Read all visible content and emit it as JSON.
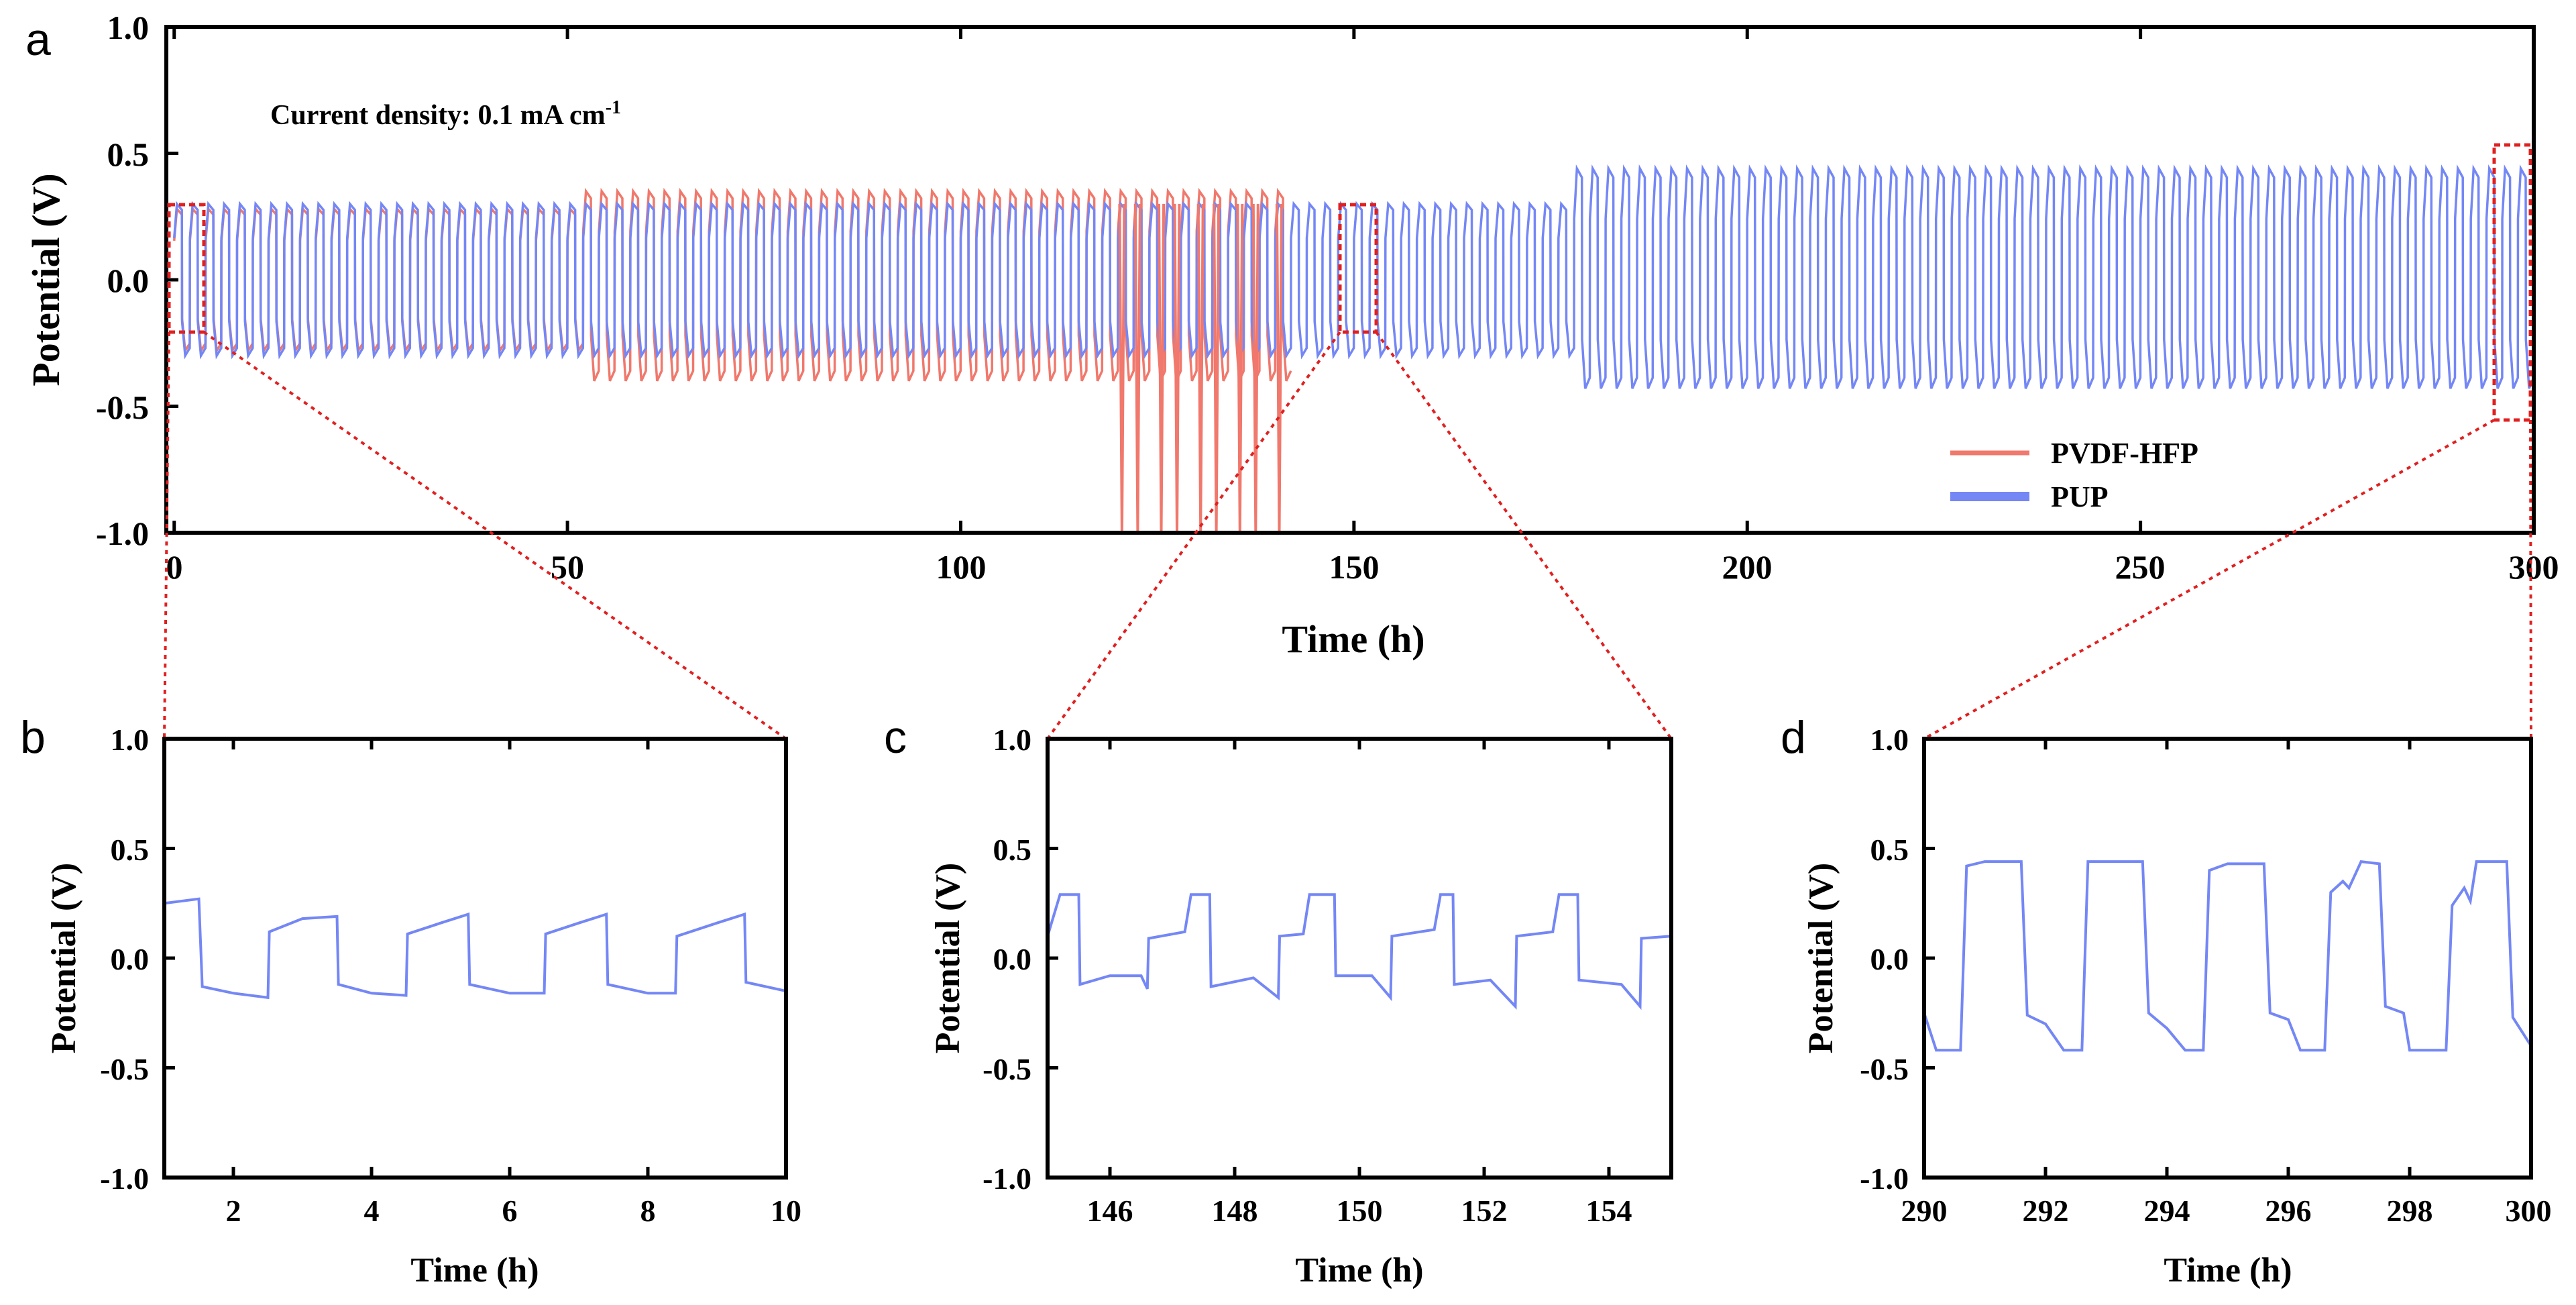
{
  "colors": {
    "pvdf": "#f0786c",
    "pup": "#7487f5",
    "zoom": "#e02020",
    "axis": "#000000"
  },
  "chart_data": [
    {
      "id": "a",
      "panel_label": "a",
      "type": "line",
      "annotation": "Current density: 0.1 mA cm",
      "annotation_sup": "-1",
      "xlabel": "Time (h)",
      "ylabel": "Potential (V)",
      "xlim": [
        -1,
        300
      ],
      "ylim": [
        -1.0,
        1.0
      ],
      "xticks": [
        "0",
        "50",
        "100",
        "150",
        "200",
        "250",
        "300"
      ],
      "yticks": [
        "1.0",
        "0.5",
        "0.0",
        "-0.5",
        "-1.0"
      ],
      "legend": [
        "PVDF-HFP",
        "PUP"
      ],
      "series": [
        {
          "name": "PVDF-HFP",
          "time_range": [
            0,
            141
          ],
          "cycle_period_h": 2.0,
          "segments": [
            {
              "from": 0,
              "to": 51,
              "upper": 0.28,
              "lower": -0.28
            },
            {
              "from": 51,
              "to": 141,
              "upper": 0.35,
              "lower": -0.4
            }
          ],
          "short_circuit_spikes_h": [
            120.5,
            122.5,
            125.5,
            127.5,
            130.5,
            132.5,
            135.5,
            137.5,
            140.5
          ]
        },
        {
          "name": "PUP",
          "time_range": [
            0,
            300
          ],
          "cycle_period_h": 2.0,
          "segments": [
            {
              "from": 0,
              "to": 177,
              "upper": 0.3,
              "lower": -0.3
            },
            {
              "from": 177,
              "to": 300,
              "upper": 0.44,
              "lower": -0.43
            }
          ]
        }
      ],
      "zoom_boxes": [
        {
          "x": [
            0,
            4
          ]
        },
        {
          "x": [
            148.5,
            153
          ]
        },
        {
          "x": [
            295.5,
            300
          ]
        }
      ]
    },
    {
      "id": "b",
      "panel_label": "b",
      "type": "line",
      "xlabel": "Time (h)",
      "ylabel": "Potential (V)",
      "xlim": [
        1,
        10
      ],
      "ylim": [
        -1.0,
        1.0
      ],
      "xticks": [
        "2",
        "4",
        "6",
        "8",
        "10"
      ],
      "yticks": [
        "1.0",
        "0.5",
        "0.0",
        "-0.5",
        "-1.0"
      ],
      "series": [
        {
          "name": "PUP",
          "points": [
            [
              1.0,
              0.25
            ],
            [
              1.5,
              0.27
            ],
            [
              1.55,
              -0.13
            ],
            [
              2.0,
              -0.16
            ],
            [
              2.5,
              -0.18
            ],
            [
              2.52,
              0.12
            ],
            [
              3.0,
              0.18
            ],
            [
              3.5,
              0.19
            ],
            [
              3.52,
              -0.12
            ],
            [
              4.0,
              -0.16
            ],
            [
              4.5,
              -0.17
            ],
            [
              4.52,
              0.11
            ],
            [
              5.0,
              0.16
            ],
            [
              5.4,
              0.2
            ],
            [
              5.42,
              -0.12
            ],
            [
              6.0,
              -0.16
            ],
            [
              6.5,
              -0.16
            ],
            [
              6.52,
              0.11
            ],
            [
              7.0,
              0.16
            ],
            [
              7.4,
              0.2
            ],
            [
              7.42,
              -0.12
            ],
            [
              8.0,
              -0.16
            ],
            [
              8.4,
              -0.16
            ],
            [
              8.42,
              0.1
            ],
            [
              9.0,
              0.16
            ],
            [
              9.4,
              0.2
            ],
            [
              9.42,
              -0.11
            ],
            [
              10.0,
              -0.15
            ]
          ]
        }
      ]
    },
    {
      "id": "c",
      "panel_label": "c",
      "type": "line",
      "xlabel": "Time (h)",
      "ylabel": "Potential (V)",
      "xlim": [
        145,
        155
      ],
      "ylim": [
        -1.0,
        1.0
      ],
      "xticks": [
        "146",
        "148",
        "150",
        "152",
        "154"
      ],
      "yticks": [
        "1.0",
        "0.5",
        "0.0",
        "-0.5",
        "-1.0"
      ],
      "series": [
        {
          "name": "PUP",
          "points": [
            [
              145.0,
              0.1
            ],
            [
              145.2,
              0.29
            ],
            [
              145.5,
              0.29
            ],
            [
              145.52,
              -0.12
            ],
            [
              146.0,
              -0.08
            ],
            [
              146.5,
              -0.08
            ],
            [
              146.6,
              -0.14
            ],
            [
              146.62,
              0.09
            ],
            [
              147.2,
              0.12
            ],
            [
              147.3,
              0.29
            ],
            [
              147.6,
              0.29
            ],
            [
              147.62,
              -0.13
            ],
            [
              148.3,
              -0.09
            ],
            [
              148.7,
              -0.18
            ],
            [
              148.72,
              0.1
            ],
            [
              149.1,
              0.11
            ],
            [
              149.2,
              0.29
            ],
            [
              149.6,
              0.29
            ],
            [
              149.62,
              -0.08
            ],
            [
              150.2,
              -0.08
            ],
            [
              150.5,
              -0.18
            ],
            [
              150.52,
              0.1
            ],
            [
              151.2,
              0.13
            ],
            [
              151.3,
              0.29
            ],
            [
              151.5,
              0.29
            ],
            [
              151.52,
              -0.12
            ],
            [
              152.1,
              -0.1
            ],
            [
              152.5,
              -0.22
            ],
            [
              152.52,
              0.1
            ],
            [
              153.1,
              0.12
            ],
            [
              153.2,
              0.29
            ],
            [
              153.5,
              0.29
            ],
            [
              153.52,
              -0.1
            ],
            [
              154.2,
              -0.12
            ],
            [
              154.5,
              -0.22
            ],
            [
              154.52,
              0.09
            ],
            [
              155.0,
              0.1
            ]
          ]
        }
      ]
    },
    {
      "id": "d",
      "panel_label": "d",
      "type": "line",
      "xlabel": "Time (h)",
      "ylabel": "Potential (V)",
      "xlim": [
        290,
        300
      ],
      "ylim": [
        -1.0,
        1.0
      ],
      "xticks": [
        "290",
        "292",
        "294",
        "296",
        "298",
        "300"
      ],
      "yticks": [
        "1.0",
        "0.5",
        "0.0",
        "-0.5",
        "-1.0"
      ],
      "series": [
        {
          "name": "PUP",
          "points": [
            [
              290.0,
              -0.25
            ],
            [
              290.2,
              -0.42
            ],
            [
              290.6,
              -0.42
            ],
            [
              290.7,
              0.42
            ],
            [
              291.0,
              0.44
            ],
            [
              291.6,
              0.44
            ],
            [
              291.7,
              -0.26
            ],
            [
              292.0,
              -0.3
            ],
            [
              292.3,
              -0.42
            ],
            [
              292.6,
              -0.42
            ],
            [
              292.7,
              0.44
            ],
            [
              293.6,
              0.44
            ],
            [
              293.7,
              -0.25
            ],
            [
              294.0,
              -0.32
            ],
            [
              294.3,
              -0.42
            ],
            [
              294.6,
              -0.42
            ],
            [
              294.7,
              0.4
            ],
            [
              295.0,
              0.43
            ],
            [
              295.6,
              0.43
            ],
            [
              295.7,
              -0.25
            ],
            [
              296.0,
              -0.28
            ],
            [
              296.2,
              -0.42
            ],
            [
              296.6,
              -0.42
            ],
            [
              296.7,
              0.3
            ],
            [
              296.9,
              0.35
            ],
            [
              297.0,
              0.32
            ],
            [
              297.2,
              0.44
            ],
            [
              297.5,
              0.43
            ],
            [
              297.6,
              -0.22
            ],
            [
              297.9,
              -0.25
            ],
            [
              298.0,
              -0.42
            ],
            [
              298.6,
              -0.42
            ],
            [
              298.7,
              0.24
            ],
            [
              298.9,
              0.32
            ],
            [
              299.0,
              0.26
            ],
            [
              299.1,
              0.44
            ],
            [
              299.6,
              0.44
            ],
            [
              299.7,
              -0.27
            ],
            [
              300.0,
              -0.4
            ]
          ]
        }
      ]
    }
  ]
}
